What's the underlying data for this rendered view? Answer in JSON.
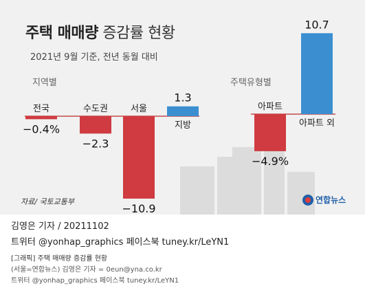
{
  "title_bold": "주택 매매량",
  "title_light": "증감률 현황",
  "subtitle": "2021년 9월 기준, 전년 동월 대비",
  "colors": {
    "positive": "#3b8fd0",
    "negative": "#cf3b40",
    "axis": "#c24a4a",
    "background": "#f1f1f1"
  },
  "chart_data": [
    {
      "type": "bar",
      "section_label": "지역별",
      "unit": "%",
      "categories": [
        "전국",
        "수도권",
        "서울",
        "지방"
      ],
      "values": [
        -0.4,
        -2.3,
        -10.9,
        1.3
      ],
      "value_labels": [
        "−0.4%",
        "−2.3",
        "−10.9",
        "1.3"
      ]
    },
    {
      "type": "bar",
      "section_label": "주택유형별",
      "unit": "%",
      "categories": [
        "아파트",
        "아파트 외"
      ],
      "values": [
        -4.9,
        10.7
      ],
      "value_labels": [
        "−4.9%",
        "10.7"
      ]
    }
  ],
  "source": "자료/ 국토교통부",
  "logo_text": "연합뉴스",
  "byline_author": "김영은 기자 / 20211102",
  "byline_social": "트위터 @yonhap_graphics  페이스북 tuney.kr/LeYN1",
  "fine_heading": "[그래픽] 주택 매매량 증감률 현황",
  "fine_credit": "(서울=연합뉴스) 김영은 기자 = 0eun@yna.co.kr",
  "fine_social": "트위터 @yonhap_graphics 페이스북 tuney.kr/LeYN1"
}
